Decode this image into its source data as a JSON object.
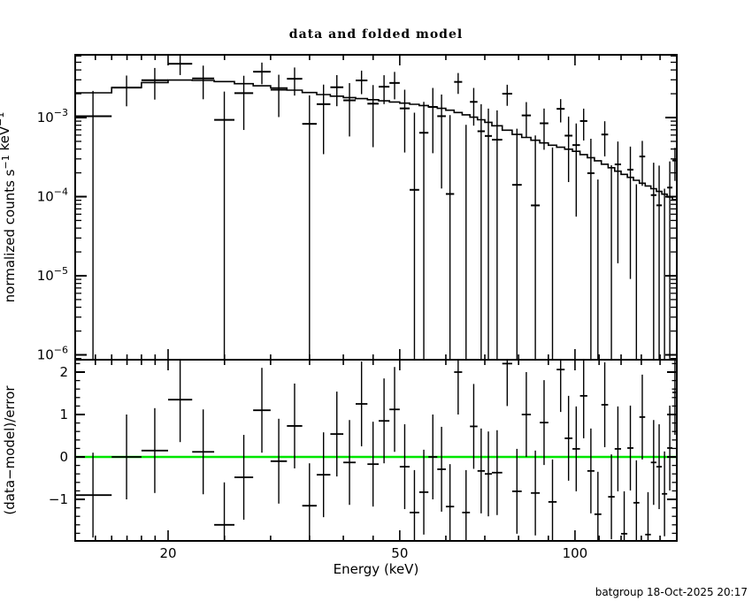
{
  "title": "data and folded model",
  "footer": "batgroup 18-Oct-2025 20:17",
  "colors": {
    "foreground": "#000000",
    "background": "#ffffff",
    "zero_line_green": "#00e600"
  },
  "axes": {
    "x_label": "Energy (keV)",
    "y_label_top_parts": [
      {
        "t": "normalized counts s"
      },
      {
        "t": "−1",
        "sup": true
      },
      {
        "t": " keV"
      },
      {
        "t": "−1",
        "sup": true
      }
    ],
    "y_label_bottom": "(data−model)/error",
    "x_tick_labels": [
      "20",
      "50",
      "100"
    ],
    "y_tick_labels_top": [
      {
        "base": "10",
        "exp": "−3"
      },
      {
        "base": "10",
        "exp": "−4"
      },
      {
        "base": "10",
        "exp": "−5"
      },
      {
        "base": "10",
        "exp": "−6"
      }
    ],
    "y_tick_labels_bottom": [
      "2",
      "1",
      "0",
      "−1"
    ]
  },
  "chart_data": {
    "type": "line",
    "description": "XSPEC-style two-panel spectral plot: top = data with 1-sigma error crosses and stepped folded model (log-log); bottom = (data-model)/error residuals (log x, linear y) with green zero line.",
    "title": "data and folded model",
    "xlabel": "Energy (keV)",
    "x_log": true,
    "xlim": [
      13.8,
      150
    ],
    "x_major_ticks": [
      20,
      50,
      100
    ],
    "x_minor_ticks": [
      15,
      16,
      17,
      18,
      19,
      25,
      30,
      35,
      40,
      45,
      60,
      70,
      80,
      90,
      110,
      120,
      130,
      140,
      150
    ],
    "top_panel": {
      "ylabel": "normalized counts s^-1 keV^-1",
      "y_log": true,
      "ylim": [
        8.7e-07,
        0.0062
      ],
      "y_major_decades": [
        -3,
        -4,
        -5,
        -6
      ],
      "model_control_points": [
        [
          14,
          0.00195
        ],
        [
          16,
          0.0022
        ],
        [
          18,
          0.0026
        ],
        [
          20,
          0.00295
        ],
        [
          22,
          0.003
        ],
        [
          25,
          0.00285
        ],
        [
          28,
          0.0026
        ],
        [
          32,
          0.0023
        ],
        [
          36,
          0.002
        ],
        [
          40,
          0.00182
        ],
        [
          45,
          0.00168
        ],
        [
          50,
          0.00155
        ],
        [
          55,
          0.00142
        ],
        [
          60,
          0.00128
        ],
        [
          66,
          0.00105
        ],
        [
          72,
          0.00084
        ],
        [
          80,
          0.0006
        ],
        [
          90,
          0.00046
        ],
        [
          100,
          0.00038
        ],
        [
          110,
          0.00028
        ],
        [
          120,
          0.0002
        ],
        [
          130,
          0.00015
        ],
        [
          140,
          0.000115
        ],
        [
          150,
          8.8e-05
        ]
      ]
    },
    "bottom_panel": {
      "ylabel": "(data-model)/error",
      "ylim": [
        -1.98,
        2.29
      ],
      "y_major_ticks": [
        -1,
        0,
        1,
        2
      ],
      "y_minor_step": 0.2,
      "zero_line": 0
    },
    "bin_edges_keV": [
      13.8,
      16,
      18,
      20,
      22,
      24,
      26,
      28,
      30,
      32,
      34,
      36,
      38,
      40,
      42,
      44,
      46,
      48,
      50,
      52,
      54,
      56,
      58,
      60,
      62,
      64,
      66,
      68,
      70,
      72,
      75,
      78,
      81,
      84,
      87,
      90,
      93,
      96,
      99,
      102,
      105,
      108,
      111,
      114,
      117,
      120,
      123,
      126,
      129,
      132,
      135,
      138,
      141,
      144,
      147,
      150
    ],
    "residuals_sigma": [
      -0.9,
      0.0,
      0.15,
      1.35,
      0.12,
      -1.6,
      -0.48,
      1.1,
      -0.1,
      0.73,
      -1.15,
      -0.42,
      0.54,
      -0.13,
      1.25,
      -0.17,
      0.85,
      1.12,
      -0.23,
      -1.31,
      -0.83,
      0.0,
      -0.29,
      -1.17,
      2.0,
      -1.31,
      0.72,
      -0.33,
      -0.4,
      -0.37,
      2.2,
      -0.81,
      1.0,
      -0.85,
      0.81,
      -1.06,
      2.06,
      0.44,
      0.19,
      1.44,
      -0.33,
      -1.35,
      1.23,
      -0.94,
      0.19,
      -1.81,
      0.21,
      -1.08,
      0.94,
      -1.83,
      -0.13,
      -0.23,
      -0.87,
      0.21,
      1.52
    ],
    "relative_error_sigma_over_model": [
      0.55,
      0.42,
      0.46,
      0.45,
      0.48,
      0.42,
      0.5,
      0.46,
      0.52,
      0.54,
      0.52,
      0.58,
      0.55,
      0.6,
      0.56,
      0.64,
      0.6,
      0.66,
      0.62,
      0.7,
      0.66,
      0.74,
      0.7,
      0.78,
      0.72,
      0.82,
      0.78,
      0.86,
      0.82,
      0.9,
      0.86,
      0.95,
      0.9,
      1.0,
      0.95,
      1.05,
      1.0,
      1.1,
      1.05,
      1.15,
      1.1,
      1.2,
      1.12,
      1.25,
      1.15,
      1.3,
      1.2,
      1.35,
      1.25,
      1.4,
      1.3,
      1.45,
      1.35,
      1.5,
      1.4
    ],
    "residual_error": 1.0
  }
}
